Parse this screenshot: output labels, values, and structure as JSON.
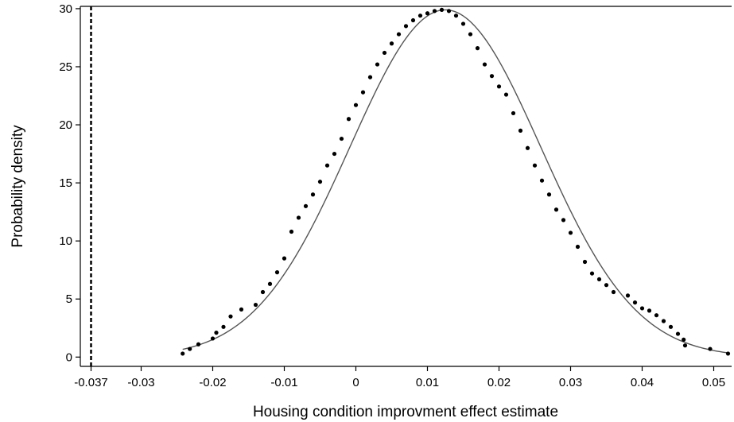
{
  "chart_data": {
    "type": "scatter",
    "xlabel": "Housing condition improvment effect estimate",
    "ylabel": "Probability density",
    "xlim": [
      -0.0385,
      0.0525
    ],
    "ylim": [
      -0.8,
      30.2
    ],
    "x_ticks": [
      "-0.037",
      "-0.03",
      "-0.02",
      "-0.01",
      "0",
      "0.01",
      "0.02",
      "0.03",
      "0.04",
      "0.05"
    ],
    "x_tick_values": [
      -0.037,
      -0.03,
      -0.02,
      -0.01,
      0,
      0.01,
      0.02,
      0.03,
      0.04,
      0.05
    ],
    "y_ticks": [
      "0",
      "5",
      "10",
      "15",
      "20",
      "25",
      "30"
    ],
    "y_tick_values": [
      0,
      5,
      10,
      15,
      20,
      25,
      30
    ],
    "grid": false,
    "reference_line": {
      "x": -0.037,
      "style": "dashed"
    },
    "fitted_curve": {
      "type": "normal",
      "mean": 0.0125,
      "sd": 0.0133,
      "color": "#555555"
    },
    "series": [
      {
        "marker_color": "#000000",
        "x": [
          -0.0242,
          -0.0232,
          -0.022,
          -0.02,
          -0.0195,
          -0.0185,
          -0.0175,
          -0.016,
          -0.014,
          -0.013,
          -0.012,
          -0.011,
          -0.01,
          -0.009,
          -0.008,
          -0.007,
          -0.006,
          -0.005,
          -0.004,
          -0.003,
          -0.002,
          -0.001,
          0.0,
          0.001,
          0.002,
          0.003,
          0.004,
          0.005,
          0.006,
          0.007,
          0.008,
          0.009,
          0.01,
          0.011,
          0.012,
          0.013,
          0.014,
          0.015,
          0.016,
          0.017,
          0.018,
          0.019,
          0.02,
          0.021,
          0.022,
          0.023,
          0.024,
          0.025,
          0.026,
          0.027,
          0.028,
          0.029,
          0.03,
          0.031,
          0.032,
          0.033,
          0.034,
          0.035,
          0.036,
          0.038,
          0.039,
          0.04,
          0.041,
          0.042,
          0.043,
          0.044,
          0.045,
          0.0458,
          0.046,
          0.0495,
          0.052
        ],
        "y": [
          0.3,
          0.7,
          1.1,
          1.6,
          2.1,
          2.6,
          3.5,
          4.1,
          4.5,
          5.6,
          6.3,
          7.3,
          8.5,
          10.8,
          12.0,
          13.0,
          14.0,
          15.1,
          16.5,
          17.5,
          18.8,
          20.5,
          21.7,
          22.8,
          24.1,
          25.2,
          26.2,
          27.0,
          27.8,
          28.5,
          29.0,
          29.4,
          29.6,
          29.8,
          29.9,
          29.8,
          29.4,
          28.7,
          27.8,
          26.6,
          25.2,
          24.2,
          23.3,
          22.6,
          21.0,
          19.5,
          18.0,
          16.5,
          15.2,
          14.0,
          12.7,
          11.8,
          10.7,
          9.5,
          8.2,
          7.2,
          6.7,
          6.2,
          5.6,
          5.3,
          4.7,
          4.2,
          4.0,
          3.6,
          3.1,
          2.6,
          2.0,
          1.5,
          1.0,
          0.7,
          0.3
        ]
      }
    ]
  }
}
